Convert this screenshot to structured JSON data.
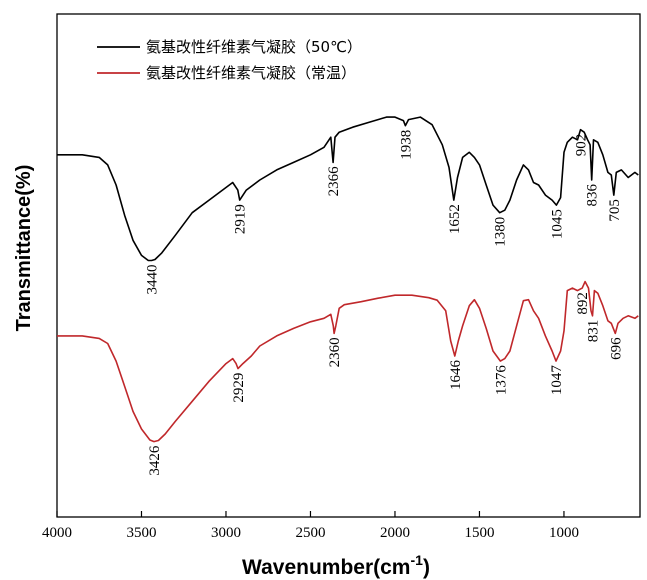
{
  "chart_data": {
    "type": "line",
    "title": "",
    "xlabel_main": "Wavenumber(cm",
    "xlabel_sup": "-1",
    "xlabel_end": ")",
    "ylabel": "Transmittance(%)",
    "xlim": [
      4000,
      550
    ],
    "x_reversed": true,
    "xticks": [
      4000,
      3500,
      3000,
      2500,
      2000,
      1500,
      1000
    ],
    "xtick_labels": [
      "4000",
      "3500",
      "3000",
      "2500",
      "2000",
      "1500",
      "1000"
    ],
    "yticks_shown": false,
    "y_units": "relative transmittance (arbitrary, 0 = bottom axis, 100 = top axis)",
    "legend_position": "top-left",
    "series": [
      {
        "name": "氨基改性纤维素气凝胶（50℃）",
        "color": "#000000",
        "x": [
          4000,
          3850,
          3750,
          3700,
          3650,
          3600,
          3550,
          3500,
          3460,
          3440,
          3420,
          3380,
          3300,
          3200,
          3100,
          3000,
          2960,
          2930,
          2919,
          2880,
          2800,
          2700,
          2600,
          2500,
          2420,
          2380,
          2370,
          2366,
          2355,
          2330,
          2250,
          2150,
          2050,
          2000,
          1950,
          1938,
          1920,
          1850,
          1780,
          1720,
          1680,
          1652,
          1630,
          1600,
          1560,
          1530,
          1500,
          1460,
          1420,
          1380,
          1350,
          1320,
          1280,
          1240,
          1210,
          1180,
          1150,
          1110,
          1070,
          1045,
          1020,
          1000,
          980,
          950,
          920,
          902,
          880,
          860,
          845,
          836,
          825,
          800,
          770,
          740,
          720,
          705,
          690,
          660,
          620,
          580,
          560
        ],
        "y": [
          72,
          72,
          71.5,
          70,
          66,
          60,
          55,
          52,
          51,
          51,
          51.2,
          52.5,
          56,
          60.5,
          63,
          65.5,
          66.5,
          65,
          63,
          65,
          67,
          69,
          70.5,
          72,
          73.5,
          75.5,
          72,
          70.5,
          75.5,
          76.5,
          77.5,
          78.5,
          79.5,
          79.5,
          78.8,
          77.8,
          79,
          79.5,
          78,
          74,
          69.5,
          63,
          67.5,
          71.5,
          72.5,
          71.5,
          70,
          66,
          62,
          60.5,
          61,
          63,
          67,
          70,
          69,
          66.5,
          66,
          64,
          63,
          62,
          63.5,
          72.5,
          74.5,
          75.5,
          75,
          77,
          76.5,
          75,
          74,
          67,
          75,
          74.5,
          72,
          68.5,
          68,
          64,
          68.5,
          69,
          67.5,
          68.5,
          68
        ]
      },
      {
        "name": "氨基改性纤维素气凝胶（常温）",
        "color": "#c0282b",
        "x": [
          4000,
          3850,
          3750,
          3700,
          3650,
          3600,
          3550,
          3500,
          3450,
          3426,
          3400,
          3360,
          3300,
          3200,
          3100,
          3000,
          2960,
          2940,
          2929,
          2900,
          2850,
          2800,
          2700,
          2600,
          2500,
          2420,
          2380,
          2365,
          2360,
          2350,
          2330,
          2300,
          2200,
          2100,
          2000,
          1900,
          1800,
          1750,
          1700,
          1670,
          1646,
          1625,
          1600,
          1560,
          1530,
          1500,
          1460,
          1420,
          1376,
          1350,
          1320,
          1280,
          1240,
          1210,
          1180,
          1150,
          1110,
          1070,
          1047,
          1020,
          1000,
          980,
          950,
          920,
          892,
          875,
          855,
          840,
          831,
          820,
          800,
          770,
          740,
          720,
          696,
          680,
          650,
          620,
          580,
          560
        ],
        "y": [
          36,
          36,
          35.5,
          34.5,
          31,
          26,
          21,
          17.5,
          15.3,
          15,
          15.2,
          16.5,
          19,
          23,
          27,
          30.5,
          31.5,
          30.5,
          29.5,
          30.5,
          32,
          34,
          36,
          37.5,
          38.8,
          39.5,
          40.3,
          38,
          36.5,
          38,
          41.5,
          42.2,
          42.8,
          43.5,
          44.1,
          44.1,
          43.6,
          43.1,
          41,
          35,
          32,
          35,
          38,
          42,
          43.2,
          41.5,
          37.5,
          33,
          31,
          31.5,
          33,
          38,
          43,
          43.2,
          41,
          39.5,
          36,
          33,
          31,
          33,
          37,
          45,
          45.5,
          45,
          45.5,
          46.8,
          45.5,
          41,
          40,
          45,
          44.5,
          42,
          39,
          38.5,
          36.5,
          38.5,
          39.5,
          40,
          39.5,
          40
        ]
      }
    ],
    "annotations": [
      {
        "series": 0,
        "text": "3440",
        "x": 3440
      },
      {
        "series": 0,
        "text": "2919",
        "x": 2919
      },
      {
        "series": 0,
        "text": "2366",
        "x": 2366
      },
      {
        "series": 0,
        "text": "1938",
        "x": 1938
      },
      {
        "series": 0,
        "text": "1652",
        "x": 1652
      },
      {
        "series": 0,
        "text": "1380",
        "x": 1380
      },
      {
        "series": 0,
        "text": "1045",
        "x": 1045
      },
      {
        "series": 0,
        "text": "902",
        "x": 902
      },
      {
        "series": 0,
        "text": "836",
        "x": 836
      },
      {
        "series": 0,
        "text": "705",
        "x": 705
      },
      {
        "series": 1,
        "text": "3426",
        "x": 3426
      },
      {
        "series": 1,
        "text": "2929",
        "x": 2929
      },
      {
        "series": 1,
        "text": "2360",
        "x": 2360
      },
      {
        "series": 1,
        "text": "1646",
        "x": 1646
      },
      {
        "series": 1,
        "text": "1376",
        "x": 1376
      },
      {
        "series": 1,
        "text": "1047",
        "x": 1047
      },
      {
        "series": 1,
        "text": "892",
        "x": 892
      },
      {
        "series": 1,
        "text": "831",
        "x": 831
      },
      {
        "series": 1,
        "text": "696",
        "x": 696
      }
    ]
  }
}
